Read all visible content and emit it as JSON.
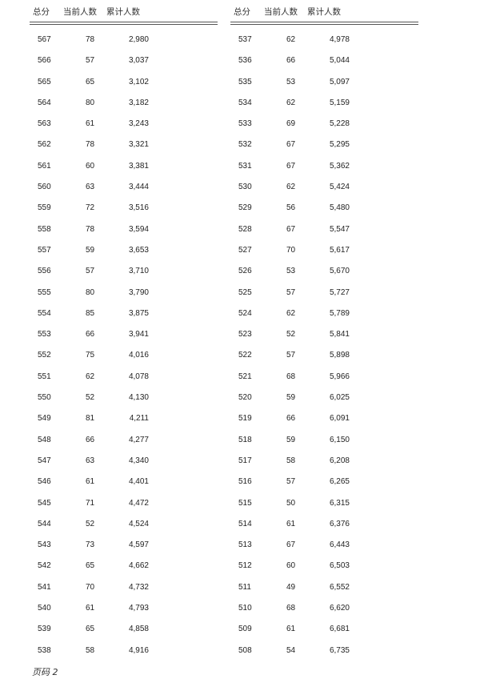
{
  "headers": [
    "总分",
    "当前人数",
    "累计人数"
  ],
  "left_rows": [
    [
      "567",
      "78",
      "2,980"
    ],
    [
      "566",
      "57",
      "3,037"
    ],
    [
      "565",
      "65",
      "3,102"
    ],
    [
      "564",
      "80",
      "3,182"
    ],
    [
      "563",
      "61",
      "3,243"
    ],
    [
      "562",
      "78",
      "3,321"
    ],
    [
      "561",
      "60",
      "3,381"
    ],
    [
      "560",
      "63",
      "3,444"
    ],
    [
      "559",
      "72",
      "3,516"
    ],
    [
      "558",
      "78",
      "3,594"
    ],
    [
      "557",
      "59",
      "3,653"
    ],
    [
      "556",
      "57",
      "3,710"
    ],
    [
      "555",
      "80",
      "3,790"
    ],
    [
      "554",
      "85",
      "3,875"
    ],
    [
      "553",
      "66",
      "3,941"
    ],
    [
      "552",
      "75",
      "4,016"
    ],
    [
      "551",
      "62",
      "4,078"
    ],
    [
      "550",
      "52",
      "4,130"
    ],
    [
      "549",
      "81",
      "4,211"
    ],
    [
      "548",
      "66",
      "4,277"
    ],
    [
      "547",
      "63",
      "4,340"
    ],
    [
      "546",
      "61",
      "4,401"
    ],
    [
      "545",
      "71",
      "4,472"
    ],
    [
      "544",
      "52",
      "4,524"
    ],
    [
      "543",
      "73",
      "4,597"
    ],
    [
      "542",
      "65",
      "4,662"
    ],
    [
      "541",
      "70",
      "4,732"
    ],
    [
      "540",
      "61",
      "4,793"
    ],
    [
      "539",
      "65",
      "4,858"
    ],
    [
      "538",
      "58",
      "4,916"
    ]
  ],
  "right_rows": [
    [
      "537",
      "62",
      "4,978"
    ],
    [
      "536",
      "66",
      "5,044"
    ],
    [
      "535",
      "53",
      "5,097"
    ],
    [
      "534",
      "62",
      "5,159"
    ],
    [
      "533",
      "69",
      "5,228"
    ],
    [
      "532",
      "67",
      "5,295"
    ],
    [
      "531",
      "67",
      "5,362"
    ],
    [
      "530",
      "62",
      "5,424"
    ],
    [
      "529",
      "56",
      "5,480"
    ],
    [
      "528",
      "67",
      "5,547"
    ],
    [
      "527",
      "70",
      "5,617"
    ],
    [
      "526",
      "53",
      "5,670"
    ],
    [
      "525",
      "57",
      "5,727"
    ],
    [
      "524",
      "62",
      "5,789"
    ],
    [
      "523",
      "52",
      "5,841"
    ],
    [
      "522",
      "57",
      "5,898"
    ],
    [
      "521",
      "68",
      "5,966"
    ],
    [
      "520",
      "59",
      "6,025"
    ],
    [
      "519",
      "66",
      "6,091"
    ],
    [
      "518",
      "59",
      "6,150"
    ],
    [
      "517",
      "58",
      "6,208"
    ],
    [
      "516",
      "57",
      "6,265"
    ],
    [
      "515",
      "50",
      "6,315"
    ],
    [
      "514",
      "61",
      "6,376"
    ],
    [
      "513",
      "67",
      "6,443"
    ],
    [
      "512",
      "60",
      "6,503"
    ],
    [
      "511",
      "49",
      "6,552"
    ],
    [
      "510",
      "68",
      "6,620"
    ],
    [
      "509",
      "61",
      "6,681"
    ],
    [
      "508",
      "54",
      "6,735"
    ]
  ],
  "footer": "页码 2"
}
